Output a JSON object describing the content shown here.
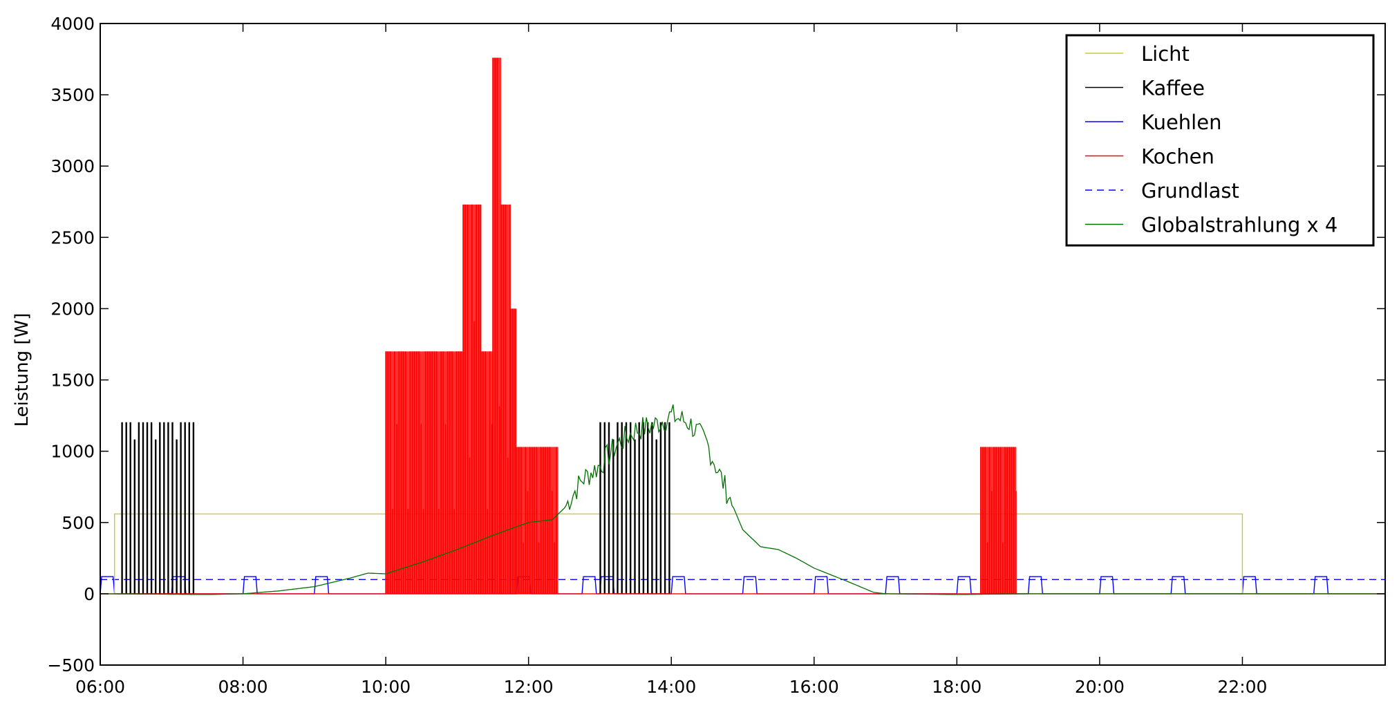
{
  "chart_data": {
    "type": "line",
    "title": "",
    "xlabel": "",
    "ylabel": "Leistung  [W]",
    "x_unit": "time of day (HH:MM)",
    "xlim": [
      "06:00",
      "24:00"
    ],
    "ylim": [
      -500,
      4000
    ],
    "x_ticks": [
      "06:00",
      "08:00",
      "10:00",
      "12:00",
      "14:00",
      "16:00",
      "18:00",
      "20:00",
      "22:00"
    ],
    "y_ticks": [
      -500,
      0,
      500,
      1000,
      1500,
      2000,
      2500,
      3000,
      3500,
      4000
    ],
    "grid": false,
    "legend_position": "top-right",
    "series": [
      {
        "name": "Licht",
        "color": "#c8c83a",
        "style": "solid",
        "kind": "step",
        "points": [
          [
            "06:00",
            0
          ],
          [
            "06:12",
            0
          ],
          [
            "06:12",
            560
          ],
          [
            "22:00",
            560
          ],
          [
            "22:00",
            0
          ],
          [
            "24:00",
            0
          ]
        ]
      },
      {
        "name": "Kaffee",
        "color": "#000000",
        "style": "solid",
        "kind": "pulses",
        "bursts": [
          {
            "start": "06:18",
            "end": "07:18",
            "count": 18,
            "value": 1200
          },
          {
            "start": "13:00",
            "end": "13:58",
            "count": 17,
            "value": 1200
          }
        ]
      },
      {
        "name": "Kuehlen",
        "color": "#0000ff",
        "style": "solid",
        "kind": "cycles",
        "on_value": 120,
        "on_minutes": 12,
        "cycles": [
          "06:00",
          "07:00",
          "08:00",
          "09:00",
          "11:50",
          "12:45",
          "13:00",
          "14:00",
          "15:00",
          "16:00",
          "17:00",
          "18:00",
          "19:00",
          "20:00",
          "21:00",
          "22:00",
          "23:00"
        ]
      },
      {
        "name": "Kochen",
        "color": "#ff0000",
        "style": "solid",
        "kind": "blocks",
        "blocks": [
          {
            "start": "10:00",
            "end": "11:05",
            "value": 1700
          },
          {
            "start": "11:05",
            "end": "11:20",
            "value": 2730
          },
          {
            "start": "11:20",
            "end": "11:30",
            "value": 1700
          },
          {
            "start": "11:30",
            "end": "11:37",
            "value": 3760
          },
          {
            "start": "11:37",
            "end": "11:45",
            "value": 2730
          },
          {
            "start": "11:45",
            "end": "11:50",
            "value": 2000
          },
          {
            "start": "11:50",
            "end": "12:25",
            "value": 1030
          },
          {
            "start": "18:20",
            "end": "18:50",
            "value": 1030
          }
        ]
      },
      {
        "name": "Grundlast",
        "color": "#0000ff",
        "style": "dashed",
        "kind": "constant",
        "value": 100
      },
      {
        "name": "Globalstrahlung x 4",
        "color": "#007000",
        "style": "solid",
        "kind": "line",
        "points": [
          [
            "06:00",
            0
          ],
          [
            "07:30",
            -5
          ],
          [
            "08:00",
            0
          ],
          [
            "08:30",
            20
          ],
          [
            "09:00",
            50
          ],
          [
            "09:30",
            110
          ],
          [
            "09:45",
            145
          ],
          [
            "10:00",
            140
          ],
          [
            "10:30",
            220
          ],
          [
            "11:00",
            310
          ],
          [
            "11:30",
            410
          ],
          [
            "12:00",
            500
          ],
          [
            "12:20",
            520
          ],
          [
            "12:30",
            600
          ],
          [
            "12:45",
            800
          ],
          [
            "13:00",
            900
          ],
          [
            "13:15",
            1050
          ],
          [
            "13:30",
            1150
          ],
          [
            "13:45",
            1180
          ],
          [
            "14:00",
            1250
          ],
          [
            "14:15",
            1200
          ],
          [
            "14:30",
            1050
          ],
          [
            "14:45",
            750
          ],
          [
            "15:00",
            450
          ],
          [
            "15:15",
            330
          ],
          [
            "15:30",
            310
          ],
          [
            "15:45",
            250
          ],
          [
            "16:00",
            180
          ],
          [
            "16:30",
            80
          ],
          [
            "16:50",
            10
          ],
          [
            "17:00",
            0
          ],
          [
            "18:00",
            -5
          ],
          [
            "19:00",
            0
          ],
          [
            "24:00",
            0
          ]
        ]
      }
    ]
  }
}
